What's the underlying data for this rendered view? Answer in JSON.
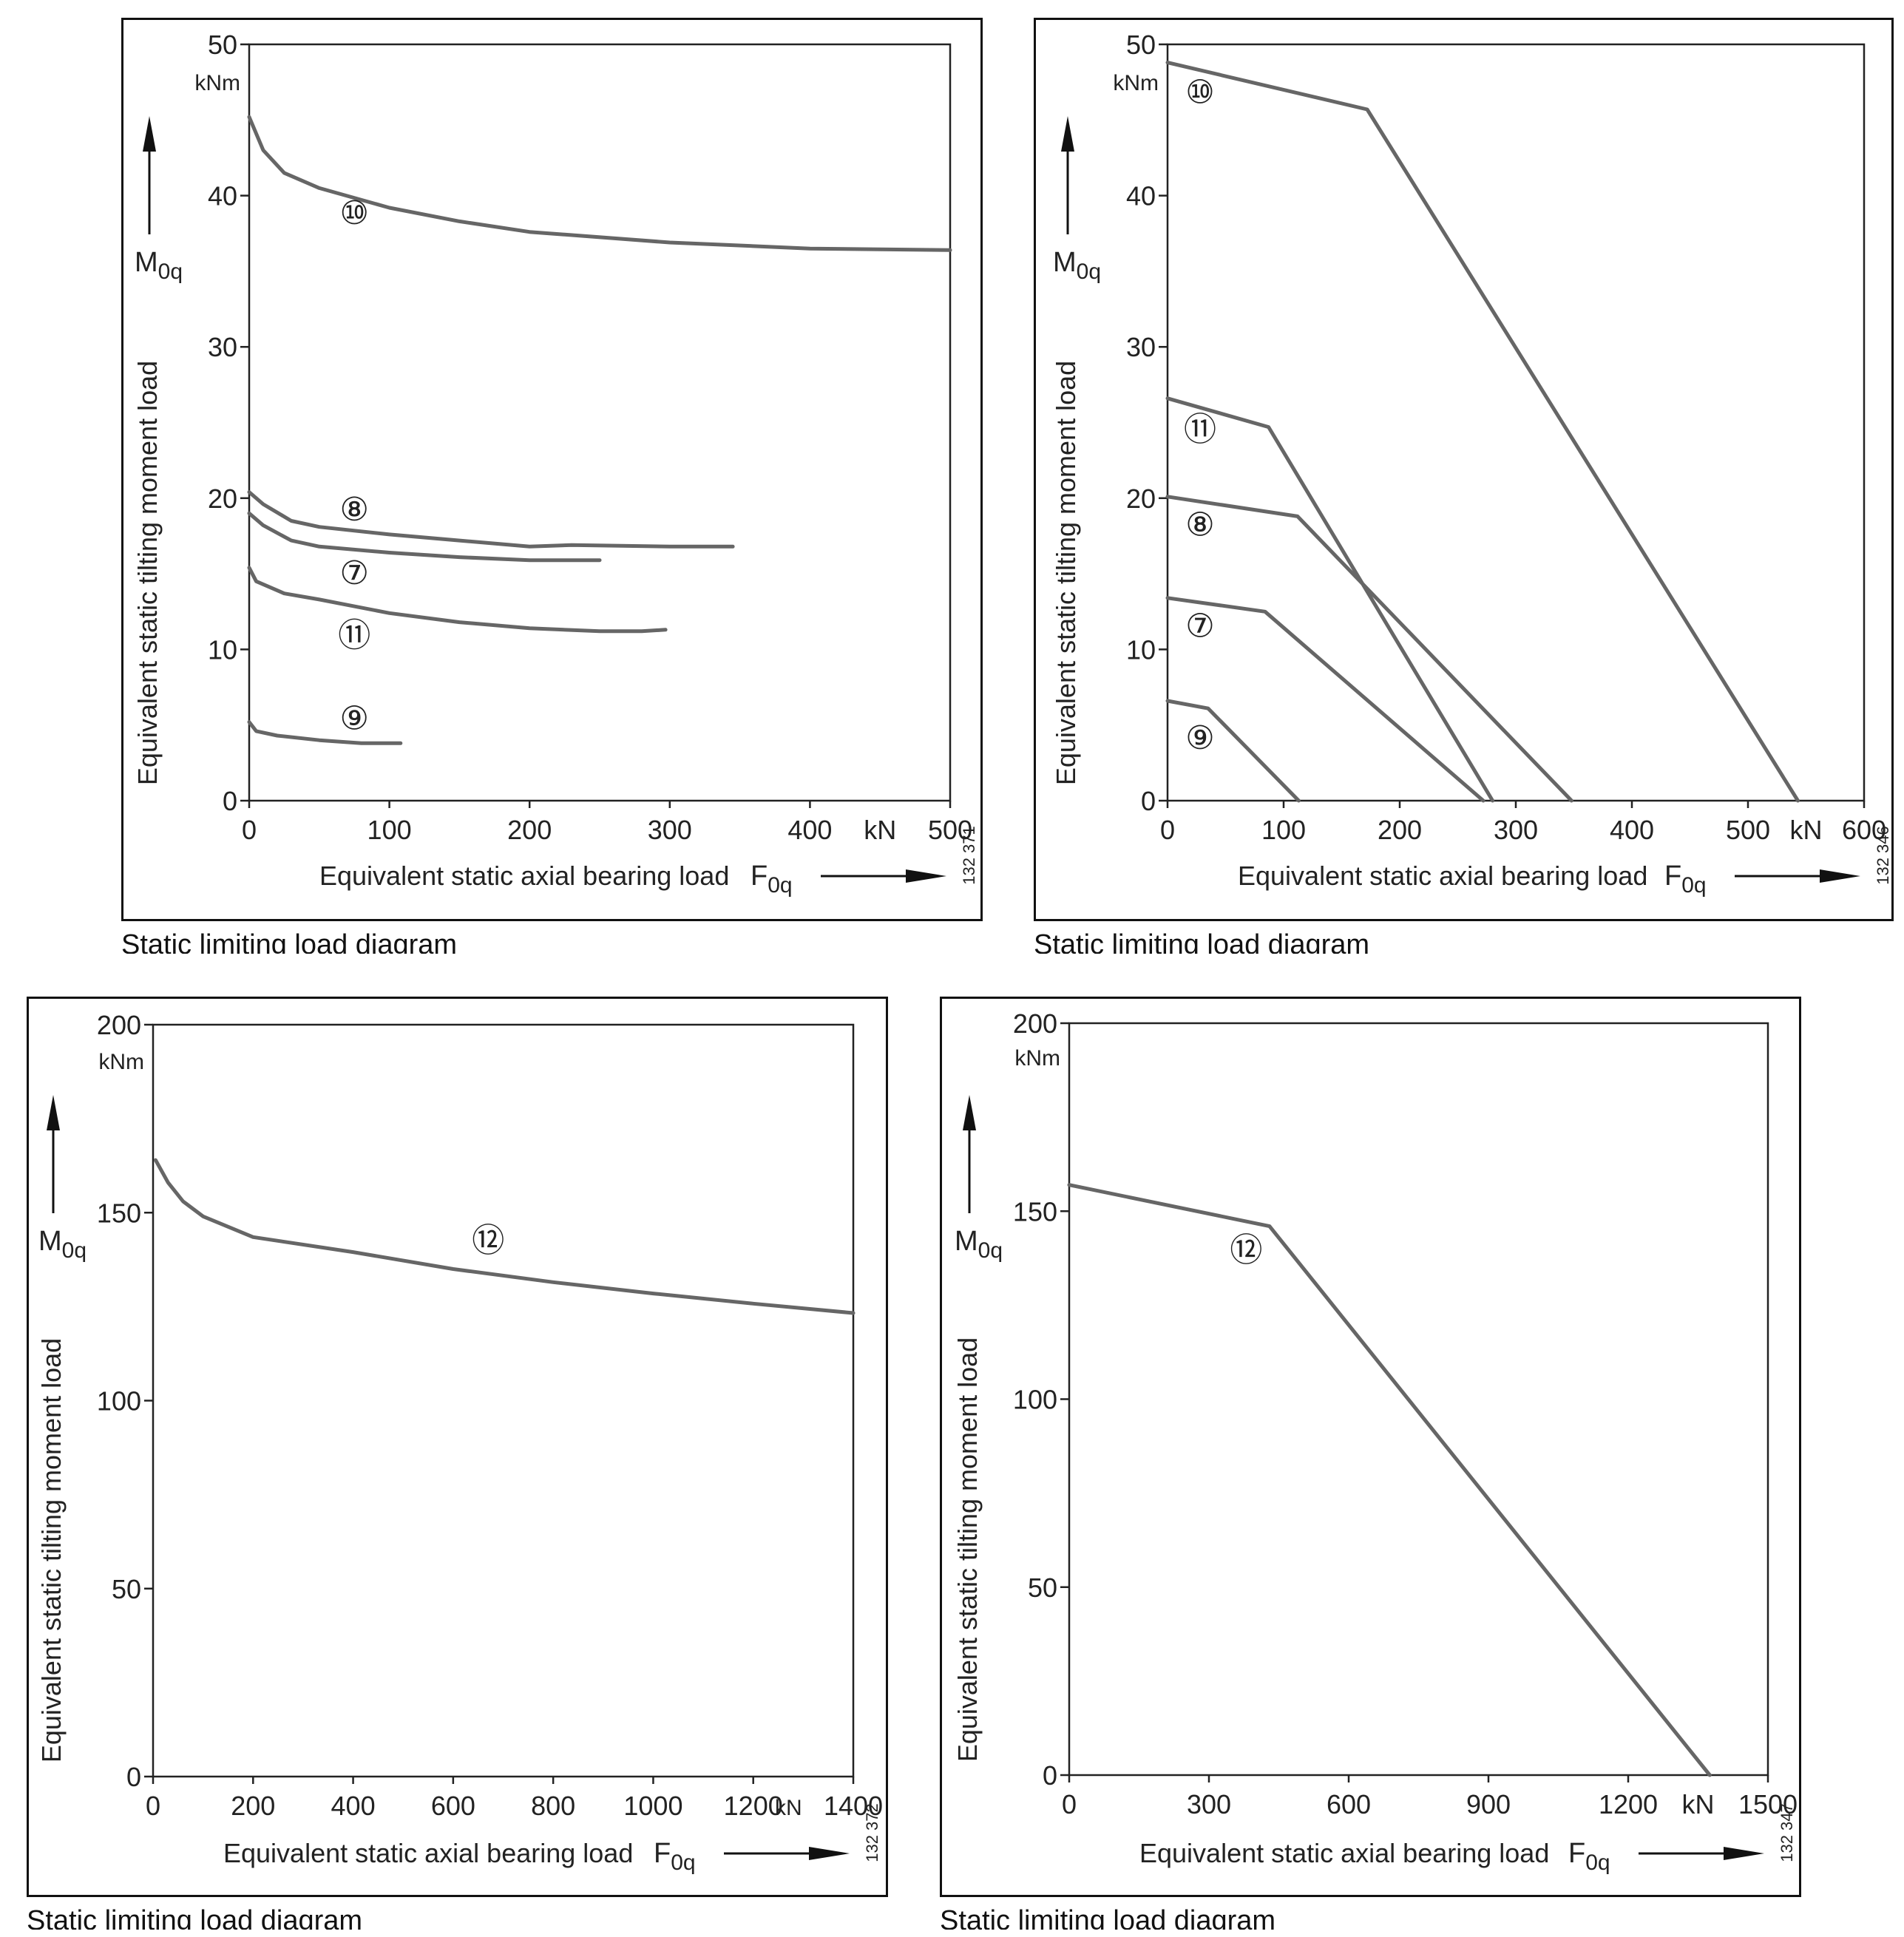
{
  "colors": {
    "curve": "#666666",
    "axis": "#222222",
    "frame": "#111111"
  },
  "chart_data": [
    {
      "type": "line",
      "xlabel": "Equivalent static axial bearing load",
      "xsym": "F",
      "xsub": "0q",
      "ylabel": "Equivalent static tilting moment load",
      "ysym": "M",
      "ysub": "0q",
      "yunit": "kNm",
      "xunit": "kN",
      "xlim": [
        0,
        500
      ],
      "ylim": [
        0,
        50
      ],
      "xticks": [
        "0",
        "100",
        "200",
        "300",
        "400",
        "500"
      ],
      "yticks": [
        "0",
        "10",
        "20",
        "30",
        "40",
        "50"
      ],
      "drawing_no": "132 371",
      "caption": "Static limiting load diagram",
      "series": [
        {
          "name": "⑩",
          "points": [
            [
              0,
              45.2
            ],
            [
              10,
              43
            ],
            [
              25,
              41.5
            ],
            [
              50,
              40.5
            ],
            [
              100,
              39.2
            ],
            [
              150,
              38.3
            ],
            [
              200,
              37.6
            ],
            [
              300,
              36.9
            ],
            [
              400,
              36.5
            ],
            [
              500,
              36.4
            ]
          ],
          "label_at": [
            75,
            38.8
          ]
        },
        {
          "name": "⑧",
          "points": [
            [
              0,
              20.4
            ],
            [
              10,
              19.6
            ],
            [
              30,
              18.5
            ],
            [
              50,
              18.1
            ],
            [
              100,
              17.6
            ],
            [
              150,
              17.2
            ],
            [
              200,
              16.8
            ],
            [
              230,
              16.9
            ],
            [
              300,
              16.8
            ],
            [
              345,
              16.8
            ]
          ],
          "label_at": [
            75,
            19.2
          ]
        },
        {
          "name": "⑦",
          "points": [
            [
              0,
              19
            ],
            [
              10,
              18.2
            ],
            [
              30,
              17.2
            ],
            [
              50,
              16.8
            ],
            [
              100,
              16.4
            ],
            [
              150,
              16.1
            ],
            [
              200,
              15.9
            ],
            [
              250,
              15.9
            ]
          ],
          "label_at": [
            75,
            15.0
          ]
        },
        {
          "name": "⑪",
          "points": [
            [
              0,
              15.4
            ],
            [
              5,
              14.5
            ],
            [
              25,
              13.7
            ],
            [
              50,
              13.3
            ],
            [
              100,
              12.4
            ],
            [
              150,
              11.8
            ],
            [
              200,
              11.4
            ],
            [
              250,
              11.2
            ],
            [
              280,
              11.2
            ],
            [
              297,
              11.3
            ]
          ],
          "label_at": [
            75,
            10.9
          ]
        },
        {
          "name": "⑨",
          "points": [
            [
              0,
              5.2
            ],
            [
              5,
              4.6
            ],
            [
              20,
              4.3
            ],
            [
              50,
              4.0
            ],
            [
              80,
              3.8
            ],
            [
              108,
              3.8
            ]
          ],
          "label_at": [
            75,
            5.4
          ]
        }
      ]
    },
    {
      "type": "line",
      "xlabel": "Equivalent static axial bearing load",
      "xsym": "F",
      "xsub": "0q",
      "ylabel": "Equivalent static tilting moment load",
      "ysym": "M",
      "ysub": "0q",
      "yunit": "kNm",
      "xunit": "kN",
      "xlim": [
        0,
        600
      ],
      "ylim": [
        0,
        50
      ],
      "xticks": [
        "0",
        "100",
        "200",
        "300",
        "400",
        "500",
        "600"
      ],
      "yticks": [
        "0",
        "10",
        "20",
        "30",
        "40",
        "50"
      ],
      "drawing_no": "132 346",
      "caption": "Static limiting load diagram",
      "series": [
        {
          "name": "⑩",
          "points": [
            [
              0,
              48.8
            ],
            [
              172,
              45.7
            ],
            [
              543,
              0
            ]
          ],
          "label_at": [
            28,
            46.8
          ]
        },
        {
          "name": "⑪",
          "points": [
            [
              0,
              26.6
            ],
            [
              87,
              24.7
            ],
            [
              280,
              0
            ]
          ],
          "label_at": [
            28,
            24.5
          ]
        },
        {
          "name": "⑧",
          "points": [
            [
              0,
              20.1
            ],
            [
              112,
              18.8
            ],
            [
              348,
              0
            ]
          ],
          "label_at": [
            28,
            18.2
          ]
        },
        {
          "name": "⑦",
          "points": [
            [
              0,
              13.4
            ],
            [
              84,
              12.5
            ],
            [
              272,
              0
            ]
          ],
          "label_at": [
            28,
            11.5
          ]
        },
        {
          "name": "⑨",
          "points": [
            [
              0,
              6.6
            ],
            [
              35,
              6.1
            ],
            [
              113,
              0
            ]
          ],
          "label_at": [
            28,
            4.1
          ]
        }
      ]
    },
    {
      "type": "line",
      "xlabel": "Equivalent static axial bearing load",
      "xsym": "F",
      "xsub": "0q",
      "ylabel": "Equivalent static tilting moment load",
      "ysym": "M",
      "ysub": "0q",
      "yunit": "kNm",
      "xunit": "kN",
      "xlim": [
        0,
        1400
      ],
      "ylim": [
        0,
        200
      ],
      "xticks": [
        "0",
        "200",
        "400",
        "600",
        "800",
        "1000",
        "1200",
        "1400"
      ],
      "yticks": [
        "0",
        "50",
        "100",
        "150",
        "200"
      ],
      "drawing_no": "132 372",
      "caption": "Static limiting load diagram",
      "series": [
        {
          "name": "⑫",
          "points": [
            [
              5,
              164
            ],
            [
              30,
              158
            ],
            [
              60,
              153
            ],
            [
              100,
              149
            ],
            [
              200,
              143.5
            ],
            [
              400,
              139.5
            ],
            [
              600,
              135
            ],
            [
              800,
              131.5
            ],
            [
              1000,
              128.5
            ],
            [
              1200,
              125.8
            ],
            [
              1400,
              123.3
            ]
          ],
          "label_at": [
            670,
            142.5
          ]
        }
      ]
    },
    {
      "type": "line",
      "xlabel": "Equivalent static axial bearing load",
      "xsym": "F",
      "xsub": "0q",
      "ylabel": "Equivalent static tilting moment load",
      "ysym": "M",
      "ysub": "0q",
      "yunit": "kNm",
      "xunit": "kN",
      "xlim": [
        0,
        1500
      ],
      "ylim": [
        0,
        200
      ],
      "xticks": [
        "0",
        "300",
        "600",
        "900",
        "1200",
        "1500"
      ],
      "yticks": [
        "0",
        "50",
        "100",
        "150",
        "200"
      ],
      "drawing_no": "132 347",
      "caption": "Static limiting load diagram",
      "series": [
        {
          "name": "⑫",
          "points": [
            [
              0,
              157
            ],
            [
              430,
              146
            ],
            [
              1375,
              0
            ]
          ],
          "label_at": [
            380,
            139.5
          ]
        }
      ]
    }
  ]
}
